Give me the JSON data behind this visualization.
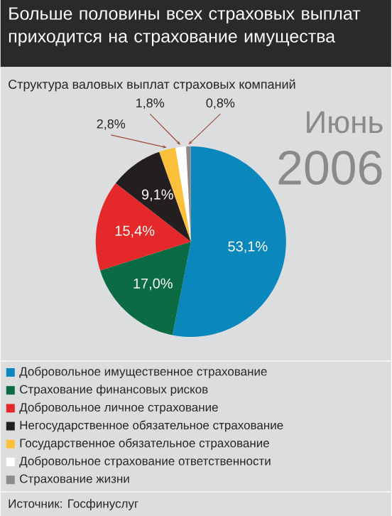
{
  "chart_data": {
    "type": "pie",
    "title": "Больше половины всех страховых выплат приходится на страхование имущества",
    "subtitle": "Структура валовых выплат страховых компаний",
    "categories": [
      "Добровольное имущественное страхование",
      "Страхование финансовых рисков",
      "Добровольное личное страхование",
      "Негосударственное обязательное страхование",
      "Государственное обязательное страхование",
      "Добровольное страхование ответственности",
      "Страхование жизни"
    ],
    "values": [
      53.1,
      17.0,
      15.4,
      9.1,
      2.8,
      1.8,
      0.8
    ],
    "value_labels": [
      "53,1%",
      "17,0%",
      "15,4%",
      "9,1%",
      "2,8%",
      "1,8%",
      "0,8%"
    ],
    "colors": [
      "#0a87bd",
      "#0b6b45",
      "#e5292a",
      "#231f20",
      "#fcc03a",
      "#ffffff",
      "#8c8c8c"
    ],
    "legend": "bottom",
    "annotations": [
      "Июнь",
      "2006",
      "Источник: Госфинуслуг"
    ]
  }
}
